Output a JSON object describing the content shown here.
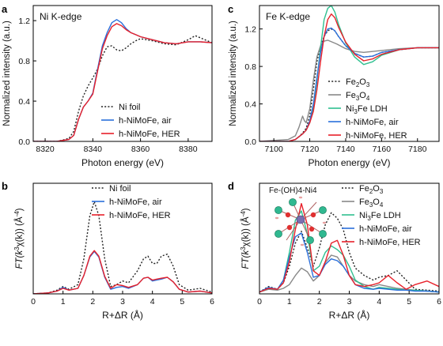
{
  "chart_data": [
    {
      "panel": "a",
      "type": "line",
      "title": "Ni K-edge",
      "xlabel": "Photon energy (eV)",
      "ylabel": "Normalized intensity (a.u.)",
      "xlim": [
        8315,
        8390
      ],
      "ylim": [
        0,
        1.35
      ],
      "xticks": [
        "8320",
        "8340",
        "8360",
        "8380"
      ],
      "yticks": [
        "0.0",
        "0.4",
        "0.8",
        "1.2"
      ],
      "legend_position": "bottom-right",
      "series": [
        {
          "name": "Ni foil",
          "color": "#222222",
          "dash": "dot",
          "x": [
            8315,
            8325,
            8330,
            8332,
            8334,
            8336,
            8338,
            8340,
            8342,
            8344,
            8346,
            8348,
            8350,
            8352,
            8354,
            8356,
            8358,
            8360,
            8365,
            8370,
            8375,
            8380,
            8383,
            8386,
            8390
          ],
          "y": [
            0.0,
            0.0,
            0.03,
            0.1,
            0.3,
            0.45,
            0.55,
            0.63,
            0.72,
            0.85,
            0.94,
            0.95,
            0.91,
            0.9,
            0.93,
            0.97,
            1.0,
            1.02,
            1.0,
            0.97,
            0.96,
            1.01,
            1.05,
            1.02,
            0.98
          ]
        },
        {
          "name": "h-NiMoFe, air",
          "color": "#2a6fdb",
          "dash": "solid",
          "x": [
            8315,
            8325,
            8330,
            8332,
            8334,
            8336,
            8338,
            8340,
            8342,
            8344,
            8346,
            8348,
            8350,
            8352,
            8354,
            8356,
            8358,
            8360,
            8365,
            8370,
            8375,
            8380,
            8385,
            8390
          ],
          "y": [
            0.0,
            0.0,
            0.02,
            0.06,
            0.22,
            0.34,
            0.4,
            0.48,
            0.72,
            0.95,
            1.08,
            1.18,
            1.21,
            1.18,
            1.12,
            1.08,
            1.06,
            1.04,
            1.01,
            0.98,
            0.97,
            0.99,
            0.99,
            0.98
          ]
        },
        {
          "name": "h-NiMoFe, HER",
          "color": "#e8202a",
          "dash": "solid",
          "x": [
            8315,
            8325,
            8330,
            8332,
            8334,
            8336,
            8338,
            8340,
            8342,
            8344,
            8346,
            8348,
            8350,
            8352,
            8354,
            8356,
            8358,
            8360,
            8365,
            8370,
            8375,
            8380,
            8385,
            8390
          ],
          "y": [
            0.0,
            0.0,
            0.02,
            0.06,
            0.22,
            0.34,
            0.4,
            0.47,
            0.7,
            0.92,
            1.05,
            1.14,
            1.17,
            1.15,
            1.11,
            1.08,
            1.06,
            1.04,
            1.01,
            0.98,
            0.97,
            0.99,
            0.99,
            0.98
          ]
        }
      ]
    },
    {
      "panel": "c",
      "type": "line",
      "title": "Fe K-edge",
      "xlabel": "Photon energy (eV)",
      "ylabel": "Normalized intensity (a.u.)",
      "xlim": [
        7092,
        7192
      ],
      "ylim": [
        0,
        1.45
      ],
      "xticks": [
        "7100",
        "7120",
        "7140",
        "7160",
        "7180"
      ],
      "yticks": [
        "0.0",
        "0.4",
        "0.8",
        "1.2"
      ],
      "legend_position": "bottom-right",
      "series": [
        {
          "name": "Fe2O3",
          "label_main": "Fe",
          "label_sub1": "2",
          "label_mid": "O",
          "label_sub2": "3",
          "color": "#222222",
          "dash": "dot",
          "x": [
            7092,
            7108,
            7112,
            7114,
            7116,
            7118,
            7120,
            7122,
            7124,
            7126,
            7128,
            7130,
            7132,
            7134,
            7136,
            7140,
            7145,
            7150,
            7155,
            7160,
            7170,
            7180,
            7192
          ],
          "y": [
            0.0,
            0.0,
            0.02,
            0.05,
            0.09,
            0.14,
            0.28,
            0.55,
            0.85,
            1.02,
            1.12,
            1.18,
            1.2,
            1.18,
            1.12,
            1.02,
            0.94,
            0.9,
            0.91,
            0.95,
            0.98,
            1.0,
            1.0
          ]
        },
        {
          "name": "Fe3O4",
          "label_main": "Fe",
          "label_sub1": "3",
          "label_mid": "O",
          "label_sub2": "4",
          "color": "#888888",
          "dash": "solid",
          "x": [
            7092,
            7108,
            7112,
            7114,
            7116,
            7117,
            7118,
            7120,
            7122,
            7124,
            7126,
            7128,
            7130,
            7135,
            7140,
            7145,
            7150,
            7160,
            7170,
            7180,
            7192
          ],
          "y": [
            0.0,
            0.02,
            0.06,
            0.15,
            0.27,
            0.22,
            0.2,
            0.35,
            0.65,
            0.9,
            1.02,
            1.07,
            1.08,
            1.04,
            0.99,
            0.96,
            0.95,
            0.97,
            0.99,
            1.0,
            1.0
          ]
        },
        {
          "name": "Ni3Fe LDH",
          "label_main": "Ni",
          "label_sub1": "3",
          "label_mid": "Fe LDH",
          "label_sub2": "",
          "color": "#2fbf8f",
          "dash": "solid",
          "x": [
            7092,
            7108,
            7112,
            7114,
            7116,
            7118,
            7120,
            7122,
            7124,
            7126,
            7128,
            7130,
            7132,
            7134,
            7136,
            7140,
            7145,
            7150,
            7155,
            7160,
            7170,
            7180,
            7192
          ],
          "y": [
            0.0,
            0.0,
            0.02,
            0.05,
            0.08,
            0.12,
            0.2,
            0.35,
            0.65,
            1.0,
            1.3,
            1.42,
            1.45,
            1.38,
            1.25,
            1.05,
            0.9,
            0.82,
            0.85,
            0.92,
            0.98,
            1.0,
            1.0
          ]
        },
        {
          "name": "h-NiMoFe, air",
          "color": "#2a6fdb",
          "dash": "solid",
          "x": [
            7092,
            7108,
            7112,
            7114,
            7116,
            7118,
            7120,
            7122,
            7124,
            7126,
            7128,
            7130,
            7132,
            7134,
            7136,
            7140,
            7145,
            7150,
            7155,
            7160,
            7170,
            7180,
            7192
          ],
          "y": [
            0.0,
            0.0,
            0.02,
            0.05,
            0.08,
            0.12,
            0.22,
            0.4,
            0.68,
            0.95,
            1.12,
            1.2,
            1.21,
            1.18,
            1.12,
            1.02,
            0.94,
            0.9,
            0.91,
            0.95,
            0.98,
            1.0,
            1.0
          ]
        },
        {
          "name": "h-NiMoFe, HER",
          "color": "#e8202a",
          "dash": "solid",
          "x": [
            7092,
            7108,
            7112,
            7114,
            7116,
            7118,
            7120,
            7122,
            7124,
            7126,
            7128,
            7130,
            7132,
            7134,
            7136,
            7140,
            7145,
            7150,
            7155,
            7160,
            7170,
            7180,
            7192
          ],
          "y": [
            0.0,
            0.0,
            0.02,
            0.05,
            0.08,
            0.12,
            0.2,
            0.32,
            0.55,
            0.85,
            1.12,
            1.3,
            1.36,
            1.32,
            1.22,
            1.06,
            0.93,
            0.86,
            0.88,
            0.93,
            0.98,
            1.0,
            1.0
          ]
        }
      ]
    },
    {
      "panel": "b",
      "type": "line",
      "xlabel": "R+ΔR (Å)",
      "ylabel_parts": [
        "FT(k",
        "3",
        "χ(k)) (Å",
        "-4",
        ")"
      ],
      "xlim": [
        0,
        6
      ],
      "ylim": [
        0,
        1.2
      ],
      "xticks": [
        "0",
        "1",
        "2",
        "3",
        "4",
        "5",
        "6"
      ],
      "legend_position": "top-right",
      "series": [
        {
          "name": "Ni foil",
          "color": "#222222",
          "dash": "dot",
          "x": [
            0,
            0.5,
            0.8,
            1.0,
            1.2,
            1.5,
            1.7,
            1.9,
            2.05,
            2.2,
            2.4,
            2.6,
            2.8,
            3.0,
            3.2,
            3.5,
            3.7,
            3.85,
            4.0,
            4.15,
            4.3,
            4.5,
            4.7,
            4.9,
            5.2,
            5.6,
            6.0
          ],
          "y": [
            0.0,
            0.01,
            0.04,
            0.08,
            0.05,
            0.1,
            0.38,
            0.85,
            1.0,
            0.85,
            0.38,
            0.08,
            0.1,
            0.14,
            0.12,
            0.25,
            0.38,
            0.41,
            0.33,
            0.33,
            0.41,
            0.43,
            0.3,
            0.1,
            0.04,
            0.06,
            0.02
          ]
        },
        {
          "name": "h-NiMoFe, air",
          "color": "#2a6fdb",
          "dash": "solid",
          "x": [
            0,
            0.5,
            0.8,
            1.0,
            1.2,
            1.5,
            1.7,
            1.9,
            2.05,
            2.2,
            2.4,
            2.6,
            2.8,
            3.0,
            3.2,
            3.5,
            3.7,
            3.85,
            4.0,
            4.15,
            4.3,
            4.5,
            4.7,
            4.9,
            5.2,
            5.6,
            6.0
          ],
          "y": [
            0.0,
            0.01,
            0.03,
            0.07,
            0.04,
            0.06,
            0.2,
            0.4,
            0.46,
            0.4,
            0.18,
            0.05,
            0.07,
            0.08,
            0.06,
            0.1,
            0.17,
            0.18,
            0.14,
            0.15,
            0.16,
            0.18,
            0.13,
            0.05,
            0.02,
            0.03,
            0.01
          ]
        },
        {
          "name": "h-NiMoFe, HER",
          "color": "#e8202a",
          "dash": "solid",
          "x": [
            0,
            0.5,
            0.8,
            1.0,
            1.2,
            1.5,
            1.7,
            1.9,
            2.05,
            2.2,
            2.4,
            2.6,
            2.8,
            3.0,
            3.2,
            3.5,
            3.7,
            3.85,
            4.0,
            4.15,
            4.3,
            4.5,
            4.7,
            4.9,
            5.2,
            5.6,
            6.0
          ],
          "y": [
            0.0,
            0.01,
            0.03,
            0.06,
            0.04,
            0.06,
            0.2,
            0.41,
            0.47,
            0.41,
            0.19,
            0.06,
            0.1,
            0.09,
            0.07,
            0.1,
            0.17,
            0.18,
            0.15,
            0.16,
            0.17,
            0.18,
            0.13,
            0.05,
            0.02,
            0.03,
            0.01
          ]
        }
      ]
    },
    {
      "panel": "d",
      "type": "line",
      "xlabel": "R+ΔR (Å)",
      "ylabel_parts": [
        "FT(k",
        "3",
        "χ(k)) (Å",
        "-4",
        ")"
      ],
      "xlim": [
        0,
        6
      ],
      "ylim": [
        0,
        1.2
      ],
      "xticks": [
        "0",
        "1",
        "2",
        "3",
        "4",
        "5",
        "6"
      ],
      "legend_position": "top-right",
      "inset_label": "Fe-(OH)4-Ni4",
      "series": [
        {
          "name": "Fe2O3",
          "label_main": "Fe",
          "label_sub1": "2",
          "label_mid": "O",
          "label_sub2": "3",
          "color": "#222222",
          "dash": "dot",
          "x": [
            0,
            0.3,
            0.6,
            0.8,
            1.0,
            1.2,
            1.4,
            1.6,
            1.8,
            2.0,
            2.2,
            2.4,
            2.6,
            2.8,
            3.0,
            3.2,
            3.5,
            3.8,
            4.0,
            4.3,
            4.6,
            4.9,
            5.2,
            5.6,
            6.0
          ],
          "y": [
            0.02,
            0.08,
            0.05,
            0.12,
            0.3,
            0.55,
            0.68,
            0.5,
            0.3,
            0.5,
            0.75,
            0.88,
            0.82,
            0.7,
            0.45,
            0.28,
            0.2,
            0.15,
            0.18,
            0.2,
            0.25,
            0.15,
            0.05,
            0.04,
            0.03
          ]
        },
        {
          "name": "Fe3O4",
          "label_main": "Fe",
          "label_sub1": "3",
          "label_mid": "O",
          "label_sub2": "4",
          "color": "#888888",
          "dash": "solid",
          "x": [
            0,
            0.3,
            0.6,
            0.8,
            1.0,
            1.2,
            1.4,
            1.6,
            1.8,
            2.0,
            2.2,
            2.4,
            2.6,
            2.8,
            3.0,
            3.2,
            3.5,
            3.8,
            4.0,
            4.3,
            4.6,
            4.9,
            5.2,
            5.6,
            6.0
          ],
          "y": [
            0.02,
            0.05,
            0.04,
            0.06,
            0.1,
            0.2,
            0.28,
            0.24,
            0.14,
            0.2,
            0.34,
            0.42,
            0.4,
            0.3,
            0.2,
            0.14,
            0.1,
            0.08,
            0.1,
            0.08,
            0.06,
            0.05,
            0.04,
            0.03,
            0.02
          ]
        },
        {
          "name": "Ni3Fe LDH",
          "label_main": "Ni",
          "label_sub1": "3",
          "label_mid": "Fe LDH",
          "label_sub2": "",
          "color": "#2fbf8f",
          "dash": "solid",
          "x": [
            0,
            0.3,
            0.6,
            0.8,
            1.0,
            1.2,
            1.4,
            1.6,
            1.8,
            2.0,
            2.2,
            2.4,
            2.6,
            2.8,
            3.0,
            3.2,
            3.5,
            3.8,
            4.0,
            4.3,
            4.6,
            4.9,
            5.2,
            5.6,
            6.0
          ],
          "y": [
            0.02,
            0.06,
            0.05,
            0.15,
            0.45,
            0.8,
            0.9,
            0.65,
            0.25,
            0.3,
            0.45,
            0.52,
            0.48,
            0.42,
            0.3,
            0.15,
            0.08,
            0.05,
            0.07,
            0.06,
            0.05,
            0.04,
            0.04,
            0.03,
            0.02
          ]
        },
        {
          "name": "h-NiMoFe, air",
          "color": "#2a6fdb",
          "dash": "solid",
          "x": [
            0,
            0.3,
            0.6,
            0.8,
            1.0,
            1.2,
            1.4,
            1.6,
            1.8,
            2.0,
            2.2,
            2.4,
            2.6,
            2.8,
            3.0,
            3.2,
            3.5,
            3.8,
            4.0,
            4.3,
            4.6,
            4.9,
            5.2,
            5.6,
            6.0
          ],
          "y": [
            0.02,
            0.07,
            0.05,
            0.15,
            0.4,
            0.62,
            0.66,
            0.45,
            0.18,
            0.2,
            0.32,
            0.38,
            0.36,
            0.3,
            0.2,
            0.1,
            0.06,
            0.05,
            0.06,
            0.05,
            0.04,
            0.04,
            0.03,
            0.03,
            0.02
          ]
        },
        {
          "name": "h-NiMoFe, HER",
          "color": "#e8202a",
          "dash": "solid",
          "x": [
            0,
            0.3,
            0.6,
            0.8,
            1.0,
            1.2,
            1.4,
            1.6,
            1.8,
            2.0,
            2.2,
            2.4,
            2.6,
            2.8,
            3.0,
            3.2,
            3.5,
            3.8,
            4.0,
            4.3,
            4.6,
            4.9,
            5.2,
            5.6,
            6.0
          ],
          "y": [
            0.02,
            0.06,
            0.05,
            0.12,
            0.35,
            0.7,
            0.98,
            0.75,
            0.25,
            0.2,
            0.35,
            0.55,
            0.58,
            0.42,
            0.2,
            0.1,
            0.08,
            0.1,
            0.12,
            0.2,
            0.12,
            0.05,
            0.1,
            0.14,
            0.08
          ]
        }
      ]
    }
  ]
}
